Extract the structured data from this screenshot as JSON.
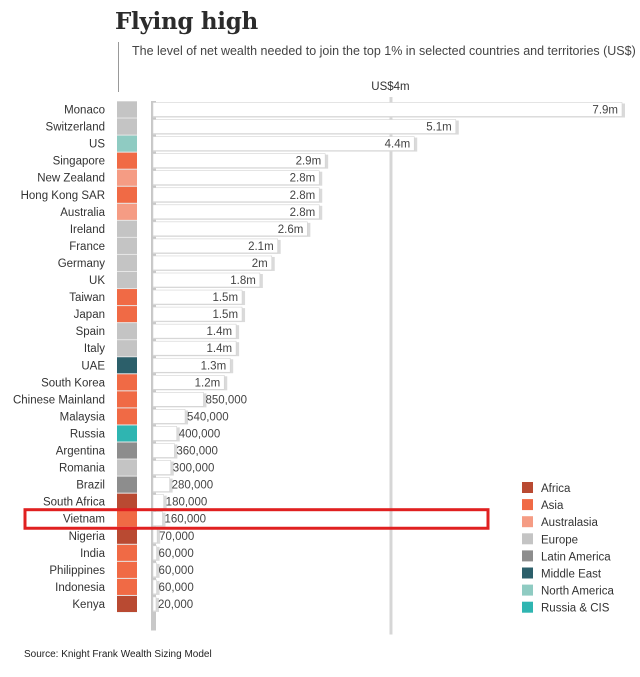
{
  "title": "Flying high",
  "subtitle": "The level of net wealth needed to join the top 1% in selected countries and territories (US$)",
  "source": "Source: Knight Frank Wealth Sizing Model",
  "colors": {
    "Africa": "#b94a32",
    "Asia": "#f06a45",
    "Australasia": "#f59c84",
    "Europe": "#c4c4c4",
    "Latin America": "#8d8d8d",
    "Middle East": "#2c5f6a",
    "North America": "#8fcbc2",
    "Russia & CIS": "#2fb5b1",
    "highlight": "#e02020"
  },
  "chart_data": {
    "type": "bar",
    "orientation": "horizontal",
    "title": "Flying high",
    "subtitle": "The level of net wealth needed to join the top 1% in selected countries and territories (US$)",
    "reference_line": {
      "value": 4000000,
      "label": "US$4m"
    },
    "xlim": [
      0,
      7900000
    ],
    "highlighted": "Vietnam",
    "categories": [
      "Monaco",
      "Switzerland",
      "US",
      "Singapore",
      "New Zealand",
      "Hong Kong SAR",
      "Australia",
      "Ireland",
      "France",
      "Germany",
      "UK",
      "Taiwan",
      "Japan",
      "Spain",
      "Italy",
      "UAE",
      "South Korea",
      "Chinese Mainland",
      "Malaysia",
      "Russia",
      "Argentina",
      "Romania",
      "Brazil",
      "South Africa",
      "Vietnam",
      "Nigeria",
      "India",
      "Philippines",
      "Indonesia",
      "Kenya"
    ],
    "values": [
      7900000,
      5100000,
      4400000,
      2900000,
      2800000,
      2800000,
      2800000,
      2600000,
      2100000,
      2000000,
      1800000,
      1500000,
      1500000,
      1400000,
      1400000,
      1300000,
      1200000,
      850000,
      540000,
      400000,
      360000,
      300000,
      280000,
      180000,
      160000,
      70000,
      60000,
      60000,
      60000,
      20000
    ],
    "value_labels": [
      "7.9m",
      "5.1m",
      "4.4m",
      "2.9m",
      "2.8m",
      "2.8m",
      "2.8m",
      "2.6m",
      "2.1m",
      "2m",
      "1.8m",
      "1.5m",
      "1.5m",
      "1.4m",
      "1.4m",
      "1.3m",
      "1.2m",
      "850,000",
      "540,000",
      "400,000",
      "360,000",
      "300,000",
      "280,000",
      "180,000",
      "160,000",
      "70,000",
      "60,000",
      "60,000",
      "60,000",
      "20,000"
    ],
    "regions": [
      "Europe",
      "Europe",
      "North America",
      "Asia",
      "Australasia",
      "Asia",
      "Australasia",
      "Europe",
      "Europe",
      "Europe",
      "Europe",
      "Asia",
      "Asia",
      "Europe",
      "Europe",
      "Middle East",
      "Asia",
      "Asia",
      "Asia",
      "Russia & CIS",
      "Latin America",
      "Europe",
      "Latin America",
      "Africa",
      "Asia",
      "Africa",
      "Asia",
      "Asia",
      "Asia",
      "Africa"
    ],
    "legend": [
      "Africa",
      "Asia",
      "Australasia",
      "Europe",
      "Latin America",
      "Middle East",
      "North America",
      "Russia & CIS"
    ]
  }
}
